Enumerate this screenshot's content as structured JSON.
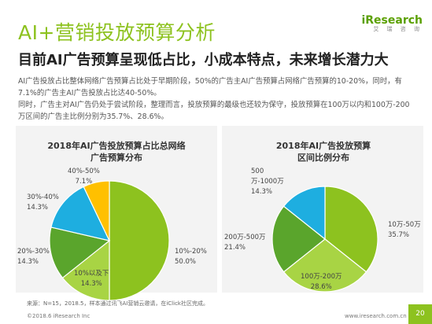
{
  "header": {
    "title": "AI+营销投放预算分析",
    "subtitle": "目前AI广告预算呈现低占比，小成本特点，未来增长潜力大",
    "logo": "iResearch",
    "logo_sub": "艾 瑞 咨 询"
  },
  "body": {
    "paragraph1": "AI广告投放占比整体网络广告预算占比处于早期阶段，50%的广告主AI广告预算占网络广告预算的10-20%，同时，有7.1%的广告主AI广告投放占比达40-50%。",
    "paragraph2": "同时，广告主对AI广告仍处于尝试阶段，整理而言，投放预算的最级也还较为保守，投放预算在100万以内和100万-200万区间的广告主比例分别为35.7%、28.6%。"
  },
  "footer": {
    "source": "来源：N=15，2018.5，样本通过讯飞AI营销云邀请，在iClick社区完成。",
    "copyright": "©2018.6 iResearch Inc",
    "website": "www.iresearch.com.cn",
    "page": "20"
  },
  "chart_data": [
    {
      "type": "pie",
      "title": "2018年AI广告投放预算占比总网络广告预算分布",
      "categories": [
        "10%-20%",
        "10%以及下",
        "20%-30%",
        "30%-40%",
        "40%-50%"
      ],
      "values": [
        50.0,
        14.3,
        14.3,
        14.3,
        7.1
      ],
      "value_labels": [
        "50.0%",
        "14.3%",
        "14.3%",
        "14.3%",
        "7.1%"
      ],
      "colors": [
        "#8dc21f",
        "#a8d444",
        "#5aa52c",
        "#1eaee0",
        "#ffc000"
      ]
    },
    {
      "type": "pie",
      "title": "2018年AI广告投放预算区间比例分布",
      "categories": [
        "10万-50万",
        "100万-200万",
        "200万-500万",
        "500万-1000万"
      ],
      "values": [
        35.7,
        28.6,
        21.4,
        14.3
      ],
      "value_labels": [
        "35.7%",
        "28.6%",
        "21.4%",
        "14.3%"
      ],
      "colors": [
        "#8dc21f",
        "#a8d444",
        "#5aa52c",
        "#1eaee0"
      ]
    }
  ]
}
